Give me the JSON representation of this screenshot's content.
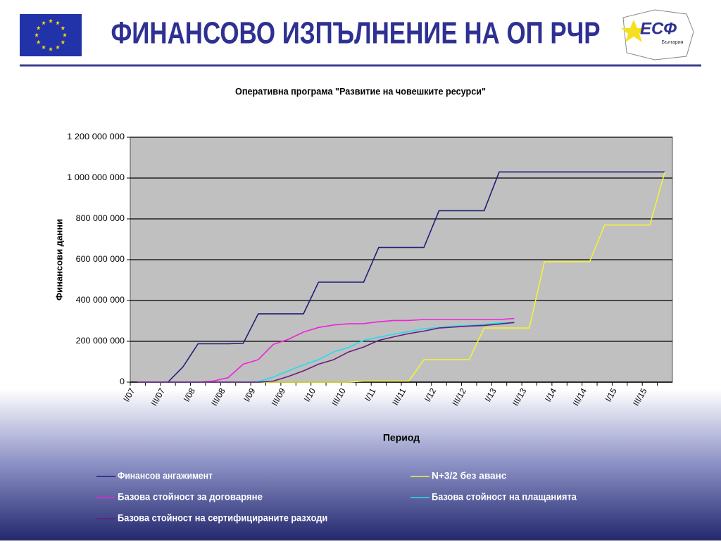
{
  "header": {
    "title": "ФИНАНСОВО ИЗПЪЛНЕНИЕ НА ОП РЧР",
    "logo_text": "ЕСФ",
    "logo_subtext": "България"
  },
  "chart_data": {
    "type": "line",
    "title": "Оперативна програма \"Развитие на човешките ресурси\"",
    "x_label": "Период",
    "y_label": "Финансови данни",
    "categories": [
      "I/07",
      null,
      "III/07",
      null,
      "I/08",
      null,
      "III/08",
      null,
      "I/09",
      null,
      "III/09",
      null,
      "I/10",
      null,
      "III/10",
      null,
      "I/11",
      null,
      "III/11",
      null,
      "I/12",
      null,
      "III/12",
      null,
      "I/13",
      null,
      "III/13",
      null,
      "I/14",
      null,
      "III/14",
      null,
      "I/15",
      null,
      "III/15",
      null
    ],
    "ylim": [
      0,
      1200000000
    ],
    "yticks": [
      0,
      {
        "value": 200000000,
        "label": "200 000 000"
      },
      {
        "value": 400000000,
        "label": "400 000 000"
      },
      {
        "value": 600000000,
        "label": "600 000 000"
      },
      {
        "value": 800000000,
        "label": "800 000 000"
      },
      {
        "value": 1000000000,
        "label": "1 000 000 000"
      },
      {
        "value": 1200000000,
        "label": "1 200 000 000"
      }
    ],
    "grid": true,
    "series": [
      {
        "name": "Финансов ангажимент",
        "color": "#1f1f7a",
        "values": [
          0,
          0,
          0,
          75000000,
          188000000,
          188000000,
          188000000,
          190000000,
          335000000,
          335000000,
          335000000,
          335000000,
          490000000,
          490000000,
          490000000,
          490000000,
          660000000,
          660000000,
          660000000,
          660000000,
          840000000,
          840000000,
          840000000,
          840000000,
          1030000000,
          1030000000,
          1030000000,
          1030000000,
          1030000000,
          1030000000,
          1030000000,
          1030000000,
          1030000000,
          1030000000,
          1030000000,
          1030000000
        ]
      },
      {
        "name": "N+3/2 без аванс",
        "color": "#f2f23a",
        "values": [
          0,
          0,
          0,
          0,
          0,
          0,
          0,
          0,
          0,
          0,
          0,
          0,
          0,
          0,
          0,
          5000000,
          5000000,
          5000000,
          5000000,
          110000000,
          110000000,
          110000000,
          110000000,
          265000000,
          265000000,
          265000000,
          265000000,
          590000000,
          590000000,
          590000000,
          590000000,
          770000000,
          770000000,
          770000000,
          770000000,
          1030000000
        ]
      },
      {
        "name": "Базова стойност за договаряне",
        "color": "#ee22dd",
        "values": [
          0,
          0,
          0,
          0,
          0,
          5000000,
          22000000,
          88000000,
          110000000,
          185000000,
          210000000,
          245000000,
          268000000,
          280000000,
          286000000,
          287000000,
          296000000,
          302000000,
          302000000,
          307000000,
          307000000,
          307000000,
          307000000,
          307000000,
          307000000,
          312000000,
          null,
          null,
          null,
          null,
          null,
          null,
          null,
          null,
          null,
          null
        ]
      },
      {
        "name": "Базова стойност на плащанията",
        "color": "#22ddee",
        "values": [
          0,
          0,
          0,
          0,
          0,
          0,
          0,
          0,
          3000000,
          25000000,
          55000000,
          85000000,
          110000000,
          148000000,
          170000000,
          205000000,
          220000000,
          235000000,
          248000000,
          262000000,
          268000000,
          275000000,
          278000000,
          283000000,
          290000000,
          293000000,
          null,
          null,
          null,
          null,
          null,
          null,
          null,
          null,
          null,
          null
        ]
      },
      {
        "name": "Базова стойност на сертифицираните разходи",
        "color": "#6a1a7a",
        "values": [
          0,
          0,
          0,
          0,
          0,
          0,
          0,
          0,
          0,
          5000000,
          28000000,
          55000000,
          88000000,
          110000000,
          148000000,
          172000000,
          205000000,
          222000000,
          238000000,
          250000000,
          265000000,
          270000000,
          275000000,
          278000000,
          285000000,
          292000000,
          null,
          null,
          null,
          null,
          null,
          null,
          null,
          null,
          null,
          null
        ]
      }
    ]
  }
}
